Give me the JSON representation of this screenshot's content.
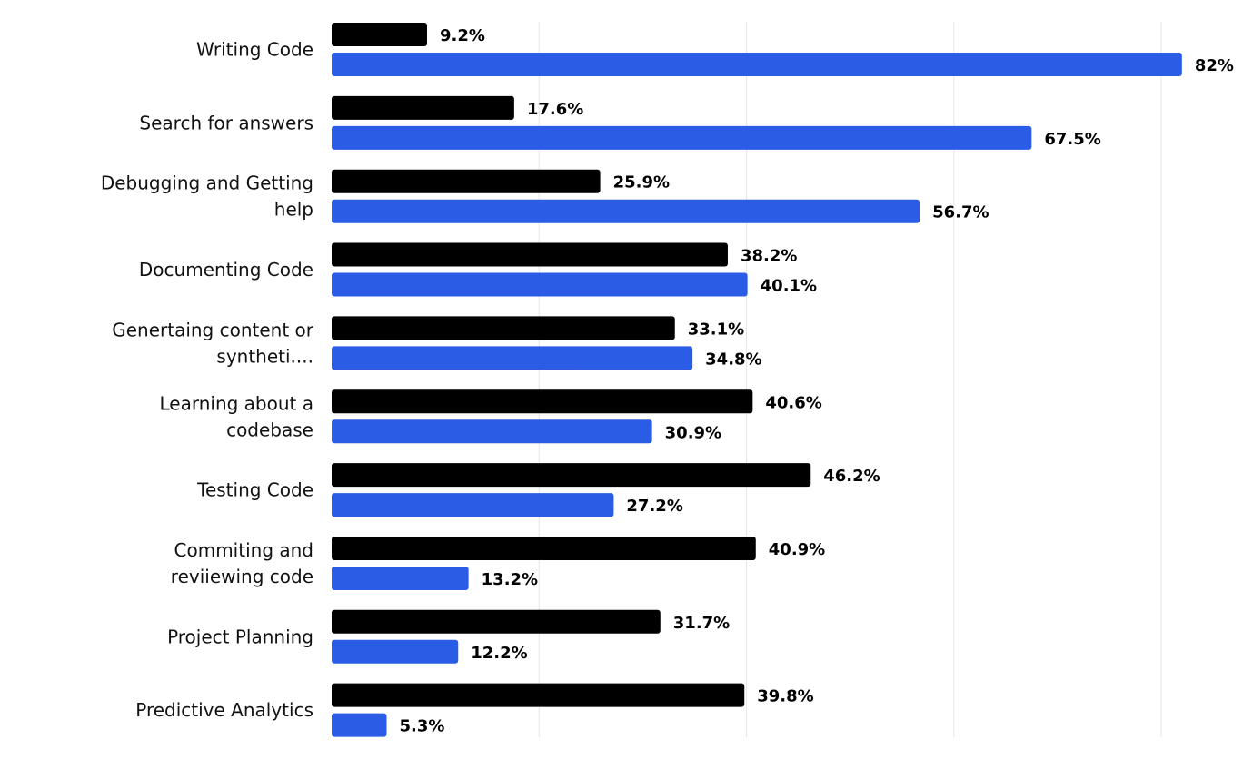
{
  "chart_data": {
    "type": "bar",
    "orientation": "horizontal",
    "categories": [
      [
        "Writing Code"
      ],
      [
        "Search for answers"
      ],
      [
        "Debugging and Getting",
        "help"
      ],
      [
        "Documenting Code"
      ],
      [
        "Genertaing content or",
        "syntheti...."
      ],
      [
        "Learning about a",
        "codebase"
      ],
      [
        "Testing Code"
      ],
      [
        "Commiting and",
        "reviiewing code"
      ],
      [
        "Project Planning"
      ],
      [
        "Predictive Analytics"
      ]
    ],
    "series": [
      {
        "color": "#000000",
        "values": [
          9.2,
          17.6,
          25.9,
          38.2,
          33.1,
          40.6,
          46.2,
          40.9,
          31.7,
          39.8
        ],
        "labels": [
          "9.2%",
          "17.6%",
          "25.9%",
          "38.2%",
          "33.1%",
          "40.6%",
          "46.2%",
          "40.9%",
          "31.7%",
          "39.8%"
        ]
      },
      {
        "color": "#2b5ce6",
        "values": [
          82,
          67.5,
          56.7,
          40.1,
          34.8,
          30.9,
          27.2,
          13.2,
          12.2,
          5.3
        ],
        "labels": [
          "82%",
          "67.5%",
          "56.7%",
          "40.1%",
          "34.8%",
          "30.9%",
          "27.2%",
          "13.2%",
          "12.2%",
          "5.3%"
        ]
      }
    ],
    "xlim": [
      0,
      80
    ],
    "gridlines": [
      0,
      20,
      40,
      60,
      80
    ],
    "grid": true,
    "legend": false
  }
}
